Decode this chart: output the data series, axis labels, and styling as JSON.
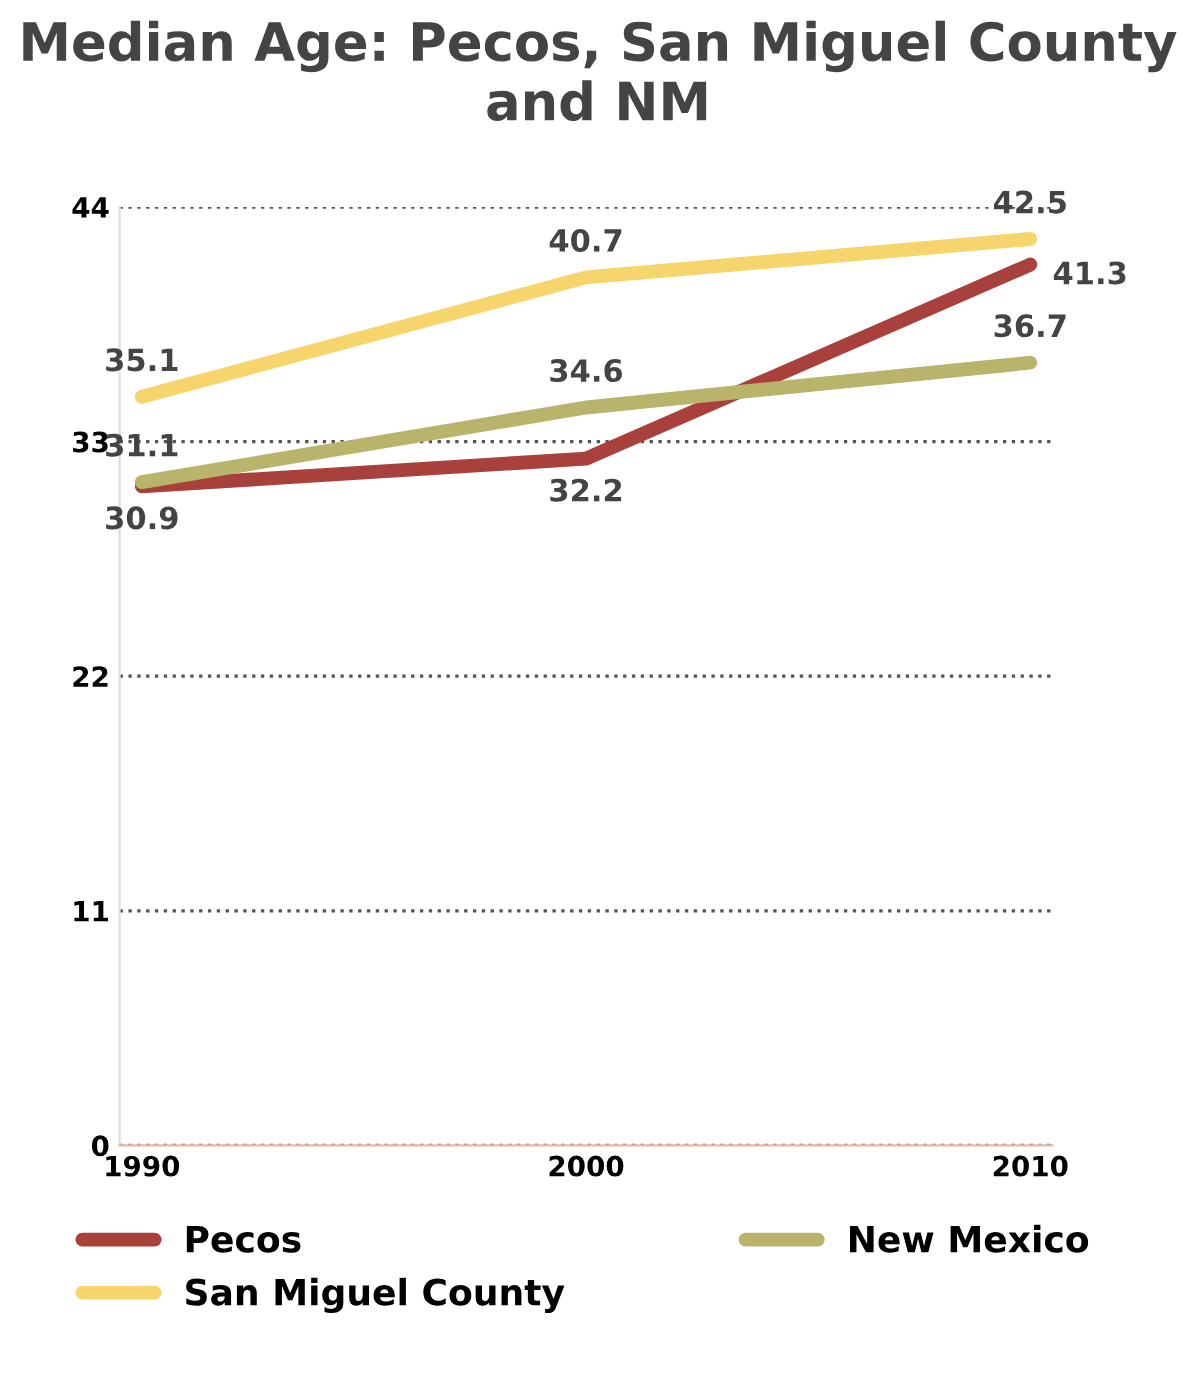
{
  "chart_data": {
    "type": "line",
    "title": "Median Age: Pecos, San Miguel County and NM",
    "categories": [
      "1990",
      "2000",
      "2010"
    ],
    "series": [
      {
        "name": "Pecos",
        "color": "#a8413c",
        "values": [
          30.9,
          32.2,
          41.3
        ]
      },
      {
        "name": "San Miguel County",
        "color": "#f6d56c",
        "values": [
          35.1,
          40.7,
          42.5
        ]
      },
      {
        "name": "New Mexico",
        "color": "#b8b46c",
        "values": [
          31.1,
          34.6,
          36.7
        ]
      }
    ],
    "ylim": [
      0,
      44
    ],
    "yticks": [
      0,
      11,
      22,
      33,
      44
    ],
    "grid": "y",
    "legend": "bottom",
    "data_labels": true,
    "marker": "none",
    "line_style": "solid"
  }
}
